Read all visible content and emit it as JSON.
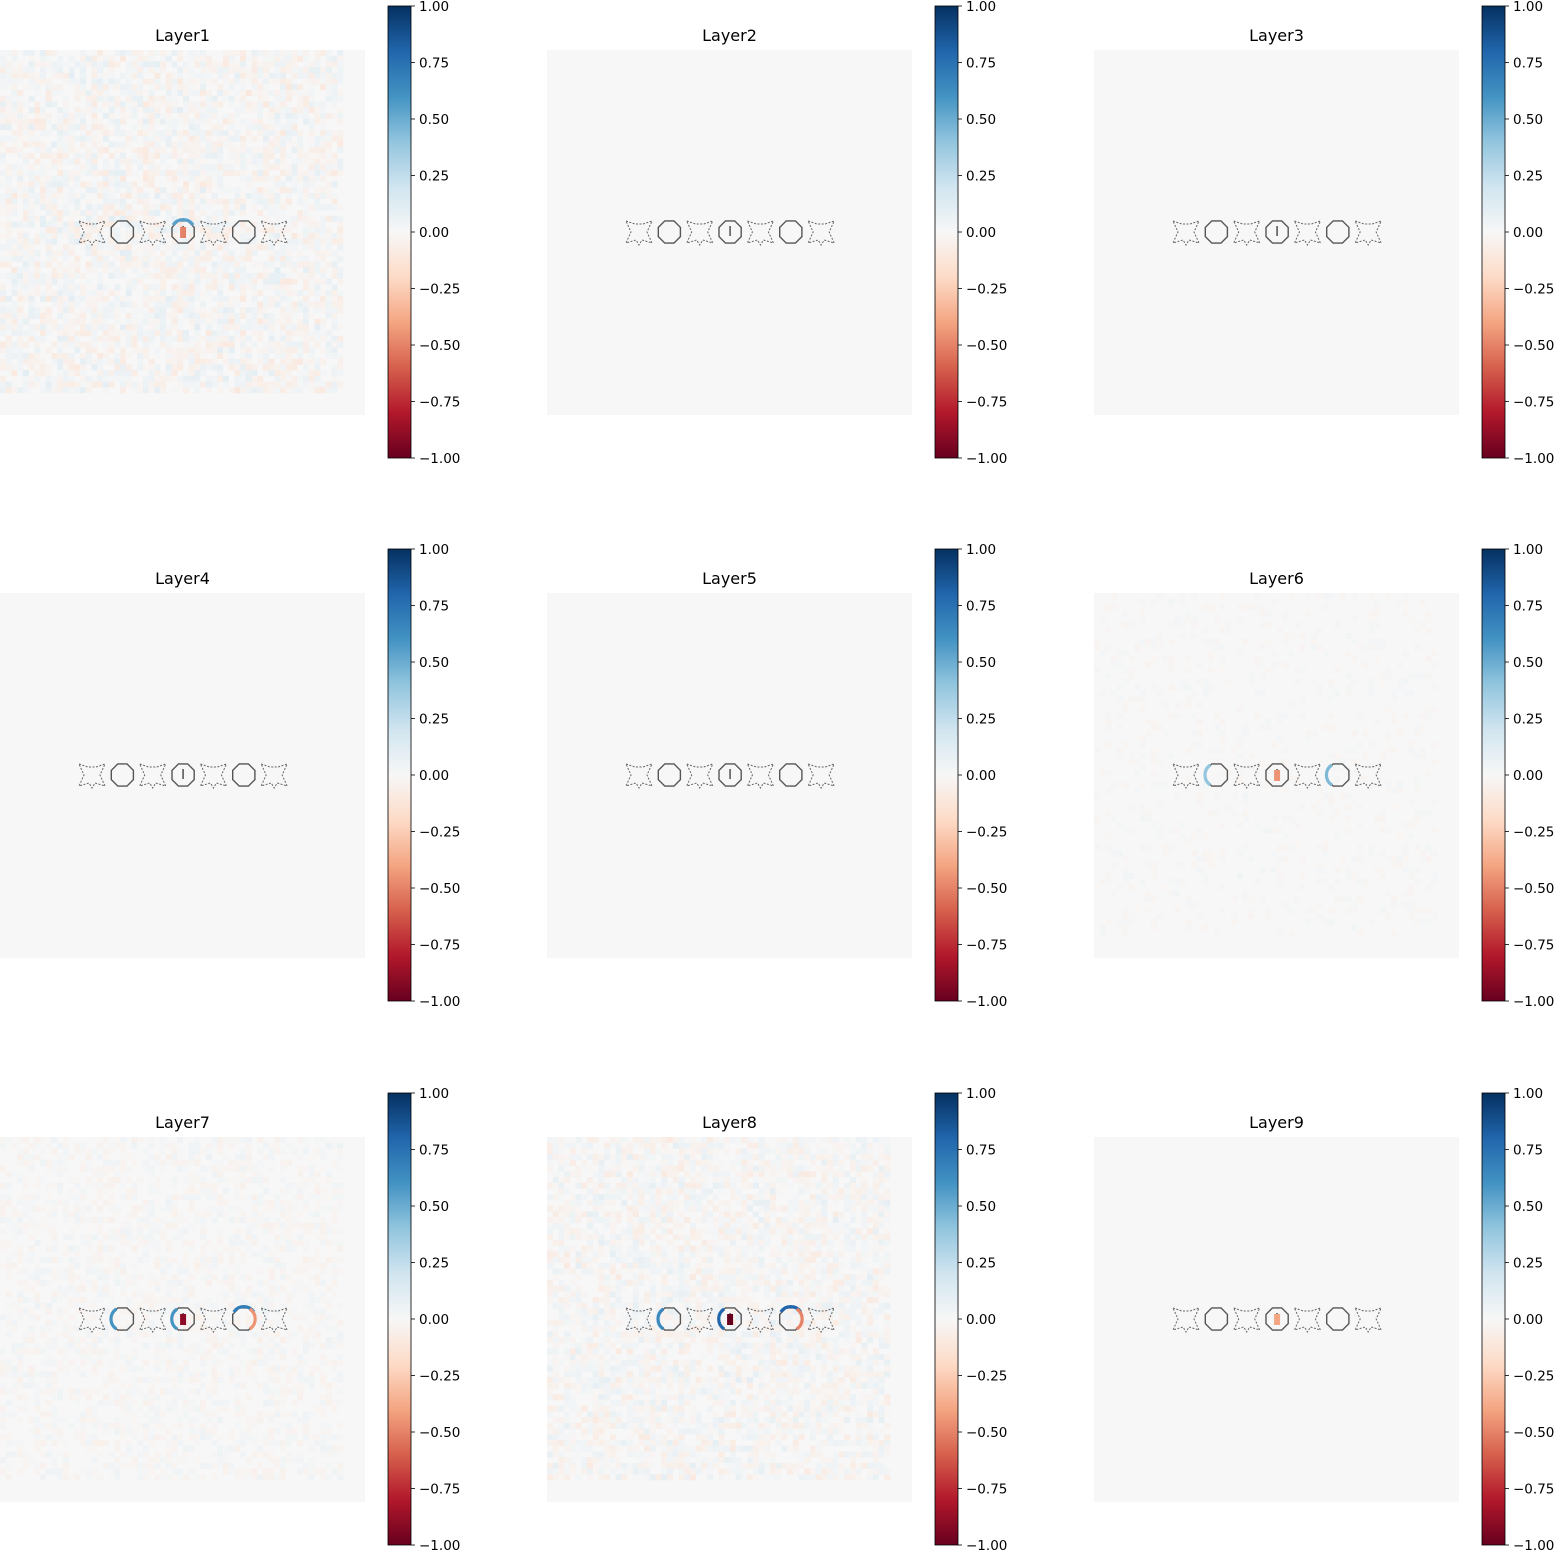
{
  "chart_data": [
    {
      "type": "heatmap",
      "title": "Layer1",
      "colorbar": {
        "ticks": [
          "1.00",
          "0.75",
          "0.50",
          "0.25",
          "0.00",
          "−0.25",
          "−0.50",
          "−0.75",
          "−1.00"
        ],
        "range": [
          -1,
          1
        ],
        "cmap": "RdBu"
      },
      "noise_level": 0.08,
      "highlights": [
        {
          "ring": 3,
          "value": 0.55,
          "side": "top"
        },
        {
          "ring": 3,
          "value": -0.5,
          "side": "center"
        }
      ]
    },
    {
      "type": "heatmap",
      "title": "Layer2",
      "colorbar": {
        "ticks": [
          "1.00",
          "0.75",
          "0.50",
          "0.25",
          "0.00",
          "−0.25",
          "−0.50",
          "−0.75",
          "−1.00"
        ],
        "range": [
          -1,
          1
        ],
        "cmap": "RdBu"
      },
      "noise_level": 0.0,
      "highlights": []
    },
    {
      "type": "heatmap",
      "title": "Layer3",
      "colorbar": {
        "ticks": [
          "1.00",
          "0.75",
          "0.50",
          "0.25",
          "0.00",
          "−0.25",
          "−0.50",
          "−0.75",
          "−1.00"
        ],
        "range": [
          -1,
          1
        ],
        "cmap": "RdBu"
      },
      "noise_level": 0.0,
      "highlights": []
    },
    {
      "type": "heatmap",
      "title": "Layer4",
      "colorbar": {
        "ticks": [
          "1.00",
          "0.75",
          "0.50",
          "0.25",
          "0.00",
          "−0.25",
          "−0.50",
          "−0.75",
          "−1.00"
        ],
        "range": [
          -1,
          1
        ],
        "cmap": "RdBu"
      },
      "noise_level": 0.0,
      "highlights": []
    },
    {
      "type": "heatmap",
      "title": "Layer5",
      "colorbar": {
        "ticks": [
          "1.00",
          "0.75",
          "0.50",
          "0.25",
          "0.00",
          "−0.25",
          "−0.50",
          "−0.75",
          "−1.00"
        ],
        "range": [
          -1,
          1
        ],
        "cmap": "RdBu"
      },
      "noise_level": 0.0,
      "highlights": []
    },
    {
      "type": "heatmap",
      "title": "Layer6",
      "colorbar": {
        "ticks": [
          "1.00",
          "0.75",
          "0.50",
          "0.25",
          "0.00",
          "−0.25",
          "−0.50",
          "−0.75",
          "−1.00"
        ],
        "range": [
          -1,
          1
        ],
        "cmap": "RdBu"
      },
      "noise_level": 0.02,
      "highlights": [
        {
          "ring": 1,
          "value": 0.4,
          "side": "left"
        },
        {
          "ring": 3,
          "value": -0.45,
          "side": "center"
        },
        {
          "ring": 5,
          "value": 0.45,
          "side": "left"
        }
      ]
    },
    {
      "type": "heatmap",
      "title": "Layer7",
      "colorbar": {
        "ticks": [
          "1.00",
          "0.75",
          "0.50",
          "0.25",
          "0.00",
          "−0.25",
          "−0.50",
          "−0.75",
          "−1.00"
        ],
        "range": [
          -1,
          1
        ],
        "cmap": "RdBu"
      },
      "noise_level": 0.04,
      "highlights": [
        {
          "ring": 1,
          "value": 0.6,
          "side": "left"
        },
        {
          "ring": 3,
          "value": -0.9,
          "side": "center"
        },
        {
          "ring": 3,
          "value": 0.6,
          "side": "left"
        },
        {
          "ring": 5,
          "value": 0.7,
          "side": "top"
        },
        {
          "ring": 5,
          "value": -0.45,
          "side": "right"
        }
      ]
    },
    {
      "type": "heatmap",
      "title": "Layer8",
      "colorbar": {
        "ticks": [
          "1.00",
          "0.75",
          "0.50",
          "0.25",
          "0.00",
          "−0.25",
          "−0.50",
          "−0.75",
          "−1.00"
        ],
        "range": [
          -1,
          1
        ],
        "cmap": "RdBu"
      },
      "noise_level": 0.07,
      "highlights": [
        {
          "ring": 1,
          "value": 0.65,
          "side": "left"
        },
        {
          "ring": 3,
          "value": -1.0,
          "side": "center"
        },
        {
          "ring": 3,
          "value": 0.8,
          "side": "left"
        },
        {
          "ring": 5,
          "value": 0.8,
          "side": "top"
        },
        {
          "ring": 5,
          "value": -0.5,
          "side": "right"
        }
      ]
    },
    {
      "type": "heatmap",
      "title": "Layer9",
      "colorbar": {
        "ticks": [
          "1.00",
          "0.75",
          "0.50",
          "0.25",
          "0.00",
          "−0.25",
          "−0.50",
          "−0.75",
          "−1.00"
        ],
        "range": [
          -1,
          1
        ],
        "cmap": "RdBu"
      },
      "noise_level": 0.0,
      "highlights": [
        {
          "ring": 3,
          "value": -0.4,
          "side": "center"
        }
      ]
    }
  ]
}
